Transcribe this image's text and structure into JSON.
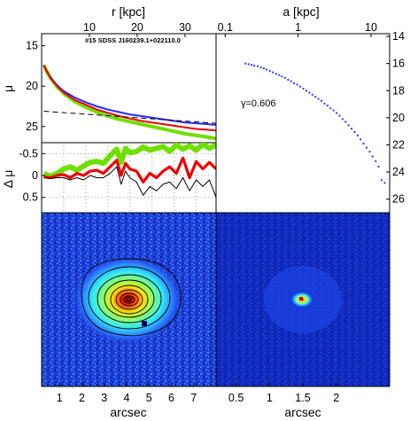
{
  "chart_data": [
    {
      "id": "profile",
      "type": "line",
      "title": "#15 SDSS J160239.1+022110.0",
      "xlabel_top": "r [kpc]",
      "ylabel": "μ",
      "x_ticks_top": [
        "10",
        "20",
        "30"
      ],
      "y_ticks": [
        "15",
        "20",
        "25"
      ],
      "ylim": [
        27,
        13.5
      ],
      "series": [
        {
          "color": "#6ee000",
          "x": [
            0.1,
            0.2,
            0.4,
            0.7,
            1.0,
            1.5,
            2.0,
            2.5,
            3.0,
            3.5,
            4.0,
            4.5,
            5.0,
            5.5,
            6.0,
            6.5,
            7.0,
            7.5,
            7.9
          ],
          "y": [
            17.4,
            18.0,
            19.0,
            20.1,
            20.9,
            21.9,
            22.6,
            23.2,
            23.7,
            24.1,
            24.4,
            24.7,
            25.0,
            25.3,
            25.6,
            25.9,
            26.1,
            26.3,
            26.5
          ]
        },
        {
          "color": "#2a2aff",
          "x": [
            0.1,
            0.2,
            0.4,
            0.7,
            1.0,
            1.5,
            2.0,
            2.5,
            3.0,
            3.5,
            4.0,
            4.5,
            5.0,
            5.5,
            6.0,
            6.5,
            7.0,
            7.5,
            7.9
          ],
          "y": [
            17.4,
            18.0,
            18.9,
            19.9,
            20.6,
            21.4,
            22.0,
            22.5,
            22.9,
            23.2,
            23.5,
            23.7,
            23.9,
            24.1,
            24.3,
            24.5,
            24.6,
            24.7,
            24.8
          ]
        },
        {
          "color": "#ee0000",
          "x": [
            0.1,
            0.2,
            0.4,
            0.7,
            1.0,
            1.5,
            2.0,
            2.5,
            3.0,
            3.5,
            4.0,
            4.5,
            5.0,
            5.5,
            6.0,
            6.5,
            7.0,
            7.5,
            7.9
          ],
          "y": [
            17.4,
            18.0,
            19.0,
            20.0,
            20.8,
            21.7,
            22.3,
            22.9,
            23.3,
            23.7,
            24.0,
            24.3,
            24.5,
            24.7,
            24.9,
            25.1,
            25.3,
            25.4,
            25.5
          ]
        },
        {
          "color": "#000000",
          "dash": true,
          "x": [
            0.1,
            7.9
          ],
          "y": [
            23.1,
            24.6
          ]
        }
      ]
    },
    {
      "id": "residual",
      "type": "line",
      "ylabel": "Δ μ",
      "y_ticks": [
        "-0.5",
        "0",
        "0.5"
      ],
      "ylim": [
        0.85,
        -0.75
      ],
      "series": [
        {
          "color": "#6ee000",
          "x": [
            0.1,
            0.4,
            0.7,
            1.0,
            1.3,
            1.6,
            1.9,
            2.2,
            2.5,
            2.8,
            3.1,
            3.4,
            3.6,
            3.8,
            4.0,
            4.3,
            4.6,
            4.9,
            5.2,
            5.5,
            5.8,
            6.1,
            6.4,
            6.7,
            7.0,
            7.3,
            7.6,
            7.9
          ],
          "y": [
            -0.05,
            0.02,
            -0.05,
            -0.15,
            -0.2,
            -0.12,
            -0.22,
            -0.3,
            -0.32,
            -0.28,
            -0.45,
            -0.6,
            -0.3,
            -0.62,
            -0.52,
            -0.55,
            -0.65,
            -0.58,
            -0.62,
            -0.66,
            -0.55,
            -0.7,
            -0.6,
            -0.68,
            -0.58,
            -0.72,
            -0.62,
            -0.7
          ]
        },
        {
          "color": "#ee0000",
          "x": [
            0.1,
            0.4,
            0.7,
            1.0,
            1.3,
            1.6,
            1.9,
            2.2,
            2.5,
            2.8,
            3.1,
            3.4,
            3.6,
            3.8,
            4.0,
            4.3,
            4.6,
            4.9,
            5.2,
            5.5,
            5.8,
            6.1,
            6.4,
            6.7,
            7.0,
            7.3,
            7.6,
            7.9
          ],
          "y": [
            0.03,
            0.05,
            0.0,
            -0.02,
            0.05,
            -0.05,
            0.0,
            -0.1,
            -0.12,
            -0.05,
            -0.2,
            -0.35,
            0.0,
            -0.28,
            -0.15,
            -0.1,
            0.15,
            -0.05,
            0.05,
            -0.1,
            -0.2,
            -0.05,
            -0.4,
            0.05,
            -0.32,
            -0.15,
            -0.3,
            -0.15
          ]
        },
        {
          "color": "#000000",
          "x": [
            0.1,
            0.4,
            0.7,
            1.0,
            1.3,
            1.6,
            1.9,
            2.2,
            2.5,
            2.8,
            3.1,
            3.4,
            3.6,
            3.8,
            4.0,
            4.3,
            4.6,
            4.9,
            5.2,
            5.5,
            5.8,
            6.1,
            6.4,
            6.7,
            7.0,
            7.3,
            7.6,
            7.9
          ],
          "y": [
            0.05,
            0.07,
            0.05,
            0.05,
            0.1,
            0.05,
            0.1,
            0.0,
            0.05,
            0.05,
            -0.05,
            -0.2,
            0.2,
            -0.1,
            0.05,
            0.15,
            0.45,
            0.25,
            0.35,
            0.2,
            0.15,
            0.3,
            0.05,
            0.35,
            0.1,
            0.25,
            0.1,
            0.5
          ]
        }
      ]
    },
    {
      "id": "ellipse-profile",
      "type": "scatter",
      "xlabel_top": "a [kpc]",
      "x_ticks_top": [
        "0.1",
        "1",
        "10"
      ],
      "y_ticks_right": [
        "14",
        "16",
        "18",
        "20",
        "22",
        "24",
        "26"
      ],
      "xlim_log": [
        0.075,
        18
      ],
      "ylim": [
        13.8,
        27
      ],
      "annotation": "γ=0.606",
      "marker_color": "#2a3cff",
      "points": {
        "x": [
          0.19,
          0.21,
          0.23,
          0.25,
          0.28,
          0.31,
          0.34,
          0.37,
          0.41,
          0.45,
          0.5,
          0.55,
          0.6,
          0.66,
          0.73,
          0.8,
          0.88,
          0.97,
          1.07,
          1.18,
          1.3,
          1.43,
          1.57,
          1.73,
          1.9,
          2.09,
          2.3,
          2.53,
          2.78,
          3.06,
          3.37,
          3.7,
          4.07,
          4.48,
          4.93,
          5.42,
          5.96,
          6.56,
          7.2,
          7.9,
          8.7,
          9.6,
          10.5,
          11.6,
          12.7,
          14.0,
          15.4
        ],
        "y": [
          16.0,
          16.05,
          16.1,
          16.15,
          16.2,
          16.3,
          16.35,
          16.45,
          16.55,
          16.65,
          16.75,
          16.85,
          16.95,
          17.05,
          17.2,
          17.3,
          17.45,
          17.55,
          17.7,
          17.85,
          18.0,
          18.15,
          18.3,
          18.45,
          18.6,
          18.75,
          18.95,
          19.1,
          19.3,
          19.45,
          19.65,
          19.85,
          20.1,
          20.3,
          20.55,
          20.8,
          21.05,
          21.3,
          21.6,
          21.9,
          22.2,
          22.5,
          22.85,
          23.2,
          23.6,
          24.6,
          24.8
        ]
      }
    },
    {
      "id": "galaxy-image",
      "type": "heatmap",
      "xlabel": "arcsec",
      "x_ticks": [
        "1",
        "2",
        "3",
        "4",
        "5",
        "6",
        "7"
      ],
      "xlim": [
        0.2,
        8.0
      ]
    },
    {
      "id": "psf-image",
      "type": "heatmap",
      "xlabel": "arcsec",
      "x_ticks": [
        "0.5",
        "1",
        "1.5",
        "2"
      ],
      "xlim": [
        0.2,
        2.8
      ]
    }
  ]
}
